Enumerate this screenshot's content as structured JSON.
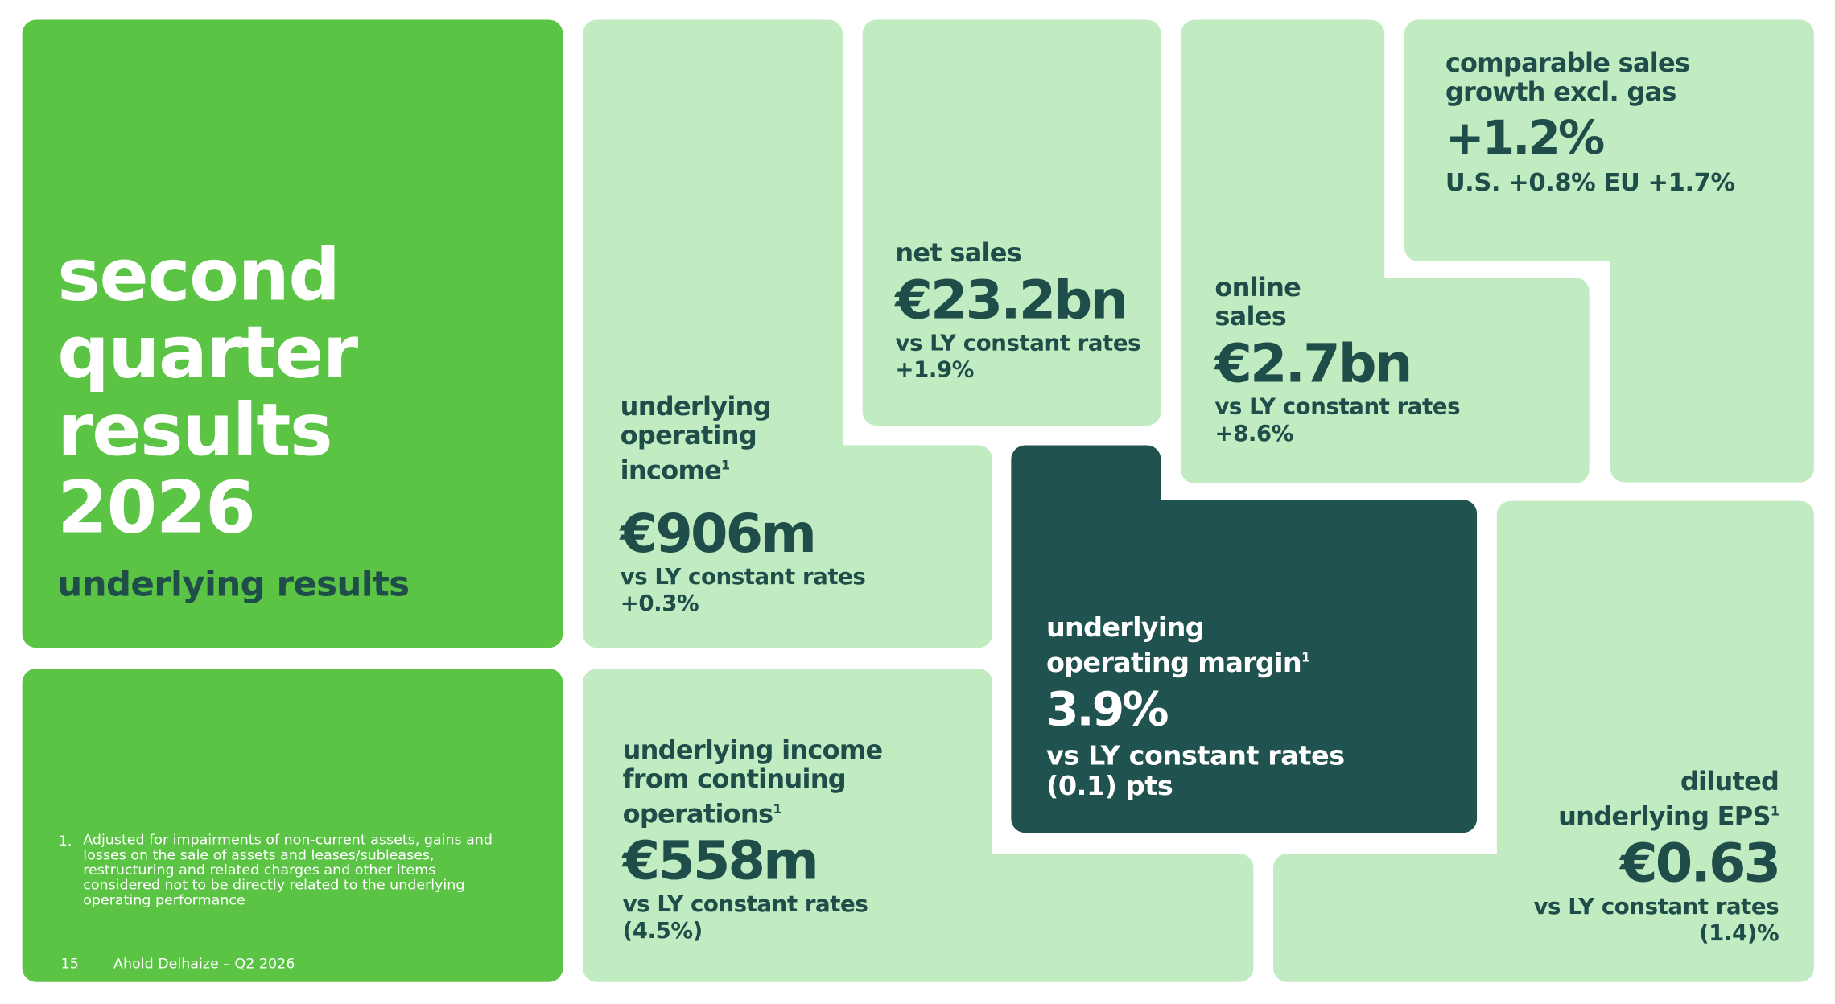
{
  "title": {
    "lines": [
      "second",
      "quarter",
      "results",
      "2026"
    ],
    "subtitle": "underlying results"
  },
  "tiles": [
    {
      "label": [
        "underlying",
        "operating",
        "income"
      ],
      "ref": "1",
      "value": "€906m",
      "comparison": "vs LY constant rates",
      "change": "+0.3%"
    },
    {
      "label": [
        "net sales"
      ],
      "value": "€23.2bn",
      "comparison": "vs LY constant rates",
      "change": "+1.9%"
    },
    {
      "label": [
        "online",
        "sales"
      ],
      "value": "€2.7bn",
      "comparison": "vs LY constant rates",
      "change": "+8.6%"
    },
    {
      "label": [
        "comparable sales",
        "growth excl. gas"
      ],
      "value": "+1.2%",
      "change": "U.S. +0.8% EU +1.7%"
    },
    {
      "label": [
        "underlying",
        "operating margin"
      ],
      "ref": "1",
      "value": "3.9%",
      "comparison": "vs LY constant rates",
      "change": "(0.1) pts"
    },
    {
      "label": [
        "underlying income",
        "from continuing",
        "operations"
      ],
      "ref": "1",
      "value": "€558m",
      "comparison": "vs LY constant rates",
      "change": "(4.5%)"
    },
    {
      "label": [
        "diluted",
        "underlying EPS"
      ],
      "ref": "1",
      "value": "€0.63",
      "comparison": "vs LY constant rates",
      "change": "(1.4)%"
    }
  ],
  "footnote": {
    "number": "1.",
    "text": "Adjusted for impairments of non-current assets, gains and losses on the sale of assets and leases/subleases, restructuring and related charges and other items considered not to be directly related to the underlying operating performance"
  },
  "footer": {
    "page": "15",
    "source": "Ahold Delhaize – Q2 2026"
  }
}
